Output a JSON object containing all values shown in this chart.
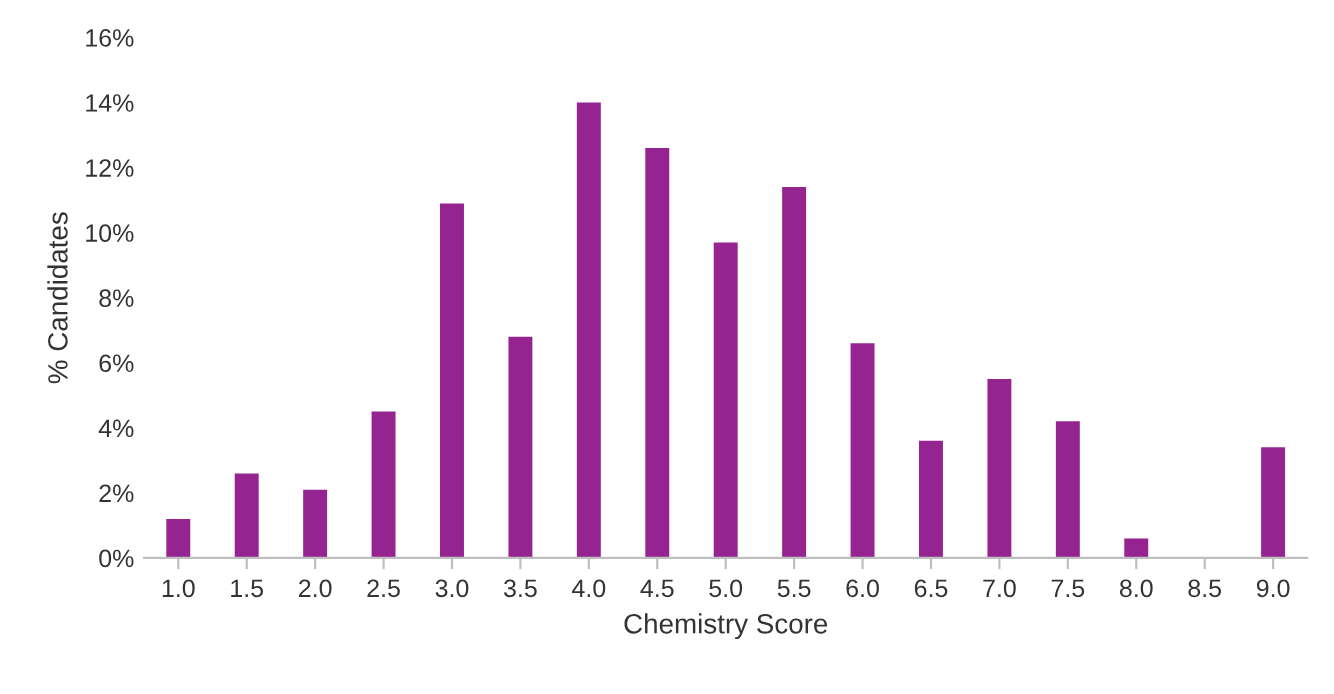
{
  "chart_data": {
    "type": "bar",
    "xlabel": "Chemistry Score",
    "ylabel": "% Candidates",
    "categories": [
      "1.0",
      "1.5",
      "2.0",
      "2.5",
      "3.0",
      "3.5",
      "4.0",
      "4.5",
      "5.0",
      "5.5",
      "6.0",
      "6.5",
      "7.0",
      "7.5",
      "8.0",
      "8.5",
      "9.0"
    ],
    "values": [
      1.2,
      2.6,
      2.1,
      4.5,
      10.9,
      6.8,
      14.0,
      12.6,
      9.7,
      11.4,
      6.6,
      3.6,
      5.5,
      4.2,
      0.6,
      0,
      3.4
    ],
    "color": "#952491",
    "ylim": [
      0,
      16
    ],
    "yticks": [
      {
        "value": 0,
        "label": "0%"
      },
      {
        "value": 2,
        "label": "2%"
      },
      {
        "value": 4,
        "label": "4%"
      },
      {
        "value": 6,
        "label": "6%"
      },
      {
        "value": 8,
        "label": "8%"
      },
      {
        "value": 10,
        "label": "10%"
      },
      {
        "value": 12,
        "label": "12%"
      },
      {
        "value": 14,
        "label": "14%"
      },
      {
        "value": 16,
        "label": "16%"
      }
    ],
    "grid": false
  }
}
